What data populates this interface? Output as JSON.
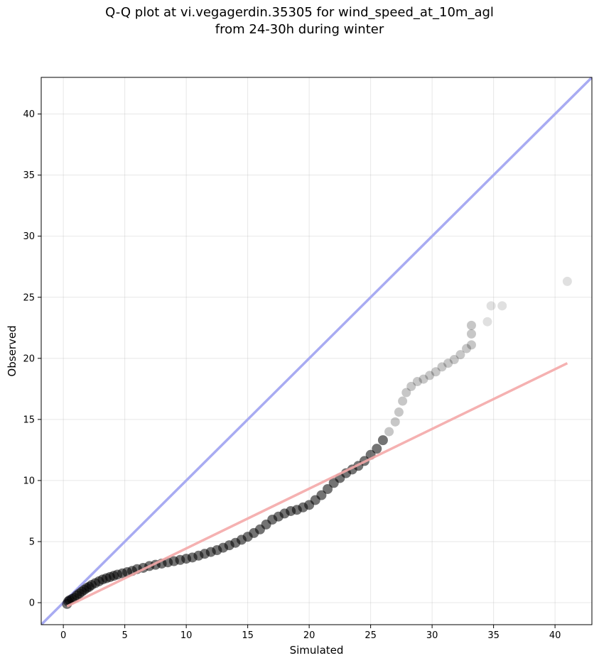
{
  "chart_data": {
    "type": "scatter",
    "title_line1": "Q-Q plot at vi.vegagerdin.35305 for wind_speed_at_10m_agl",
    "title_line2": "from 24-30h during winter",
    "xlabel": "Simulated",
    "ylabel": "Observed",
    "xlim": [
      -1.8,
      43
    ],
    "ylim": [
      -1.8,
      43
    ],
    "xticks": [
      0,
      5,
      10,
      15,
      20,
      25,
      30,
      35,
      40
    ],
    "yticks": [
      0,
      5,
      10,
      15,
      20,
      25,
      30,
      35,
      40
    ],
    "grid": true,
    "identity_line": {
      "color": "#a8abf2",
      "from": [
        -1.8,
        -1.8
      ],
      "to": [
        43,
        43
      ]
    },
    "fit_line": {
      "color": "#f4a9a9",
      "from": [
        0.3,
        -0.3
      ],
      "to": [
        41,
        19.6
      ]
    },
    "marker_color": "#000000",
    "series": [
      {
        "points": [
          [
            0.3,
            -0.1
          ],
          [
            0.4,
            0.1
          ],
          [
            0.5,
            0.2
          ],
          [
            0.7,
            0.3
          ],
          [
            0.9,
            0.4
          ],
          [
            1.1,
            0.6
          ],
          [
            1.3,
            0.75
          ],
          [
            1.5,
            0.9
          ],
          [
            1.7,
            1.05
          ],
          [
            1.9,
            1.2
          ],
          [
            2.1,
            1.3
          ],
          [
            2.3,
            1.45
          ],
          [
            2.6,
            1.6
          ],
          [
            2.9,
            1.75
          ],
          [
            3.2,
            1.9
          ],
          [
            3.5,
            2.0
          ],
          [
            3.8,
            2.1
          ],
          [
            4.1,
            2.2
          ],
          [
            4.4,
            2.3
          ],
          [
            4.8,
            2.4
          ],
          [
            5.2,
            2.5
          ],
          [
            5.6,
            2.6
          ],
          [
            6.0,
            2.75
          ],
          [
            6.5,
            2.85
          ],
          [
            7.0,
            3.0
          ],
          [
            7.5,
            3.1
          ],
          [
            8.0,
            3.2
          ],
          [
            8.5,
            3.3
          ],
          [
            9.0,
            3.4
          ],
          [
            9.5,
            3.5
          ],
          [
            10.0,
            3.6
          ],
          [
            10.5,
            3.7
          ],
          [
            11.0,
            3.85
          ],
          [
            11.5,
            4.0
          ],
          [
            12.0,
            4.15
          ],
          [
            12.5,
            4.3
          ],
          [
            13.0,
            4.5
          ],
          [
            13.5,
            4.7
          ],
          [
            14.0,
            4.9
          ],
          [
            14.5,
            5.15
          ],
          [
            15.0,
            5.4
          ],
          [
            15.5,
            5.7
          ],
          [
            16.0,
            6.0
          ],
          [
            16.5,
            6.4
          ],
          [
            17.0,
            6.8
          ],
          [
            17.5,
            7.05
          ],
          [
            18.0,
            7.3
          ],
          [
            18.5,
            7.5
          ],
          [
            19.0,
            7.6
          ],
          [
            19.5,
            7.8
          ],
          [
            20.0,
            8.0
          ],
          [
            20.5,
            8.4
          ],
          [
            21.0,
            8.8
          ],
          [
            21.5,
            9.3
          ],
          [
            22.0,
            9.8
          ],
          [
            22.5,
            10.2
          ],
          [
            23.0,
            10.6
          ],
          [
            23.5,
            10.9
          ],
          [
            24.0,
            11.2
          ],
          [
            24.5,
            11.6
          ],
          [
            25.0,
            12.1
          ],
          [
            25.5,
            12.6
          ],
          [
            26.0,
            13.3
          ],
          [
            26.5,
            14.0
          ],
          [
            27.0,
            14.8
          ],
          [
            27.3,
            15.6
          ],
          [
            27.6,
            16.5
          ],
          [
            27.9,
            17.2
          ],
          [
            28.3,
            17.7
          ],
          [
            28.8,
            18.1
          ],
          [
            29.3,
            18.3
          ],
          [
            29.8,
            18.6
          ],
          [
            30.3,
            18.9
          ],
          [
            30.8,
            19.3
          ],
          [
            31.3,
            19.6
          ],
          [
            31.8,
            19.9
          ],
          [
            32.3,
            20.3
          ],
          [
            32.8,
            20.8
          ],
          [
            33.2,
            21.1
          ],
          [
            33.2,
            22.0
          ],
          [
            33.2,
            22.7
          ],
          [
            34.5,
            23.0
          ],
          [
            34.8,
            24.3
          ],
          [
            35.7,
            24.3
          ],
          [
            41.0,
            26.3
          ]
        ]
      }
    ]
  }
}
